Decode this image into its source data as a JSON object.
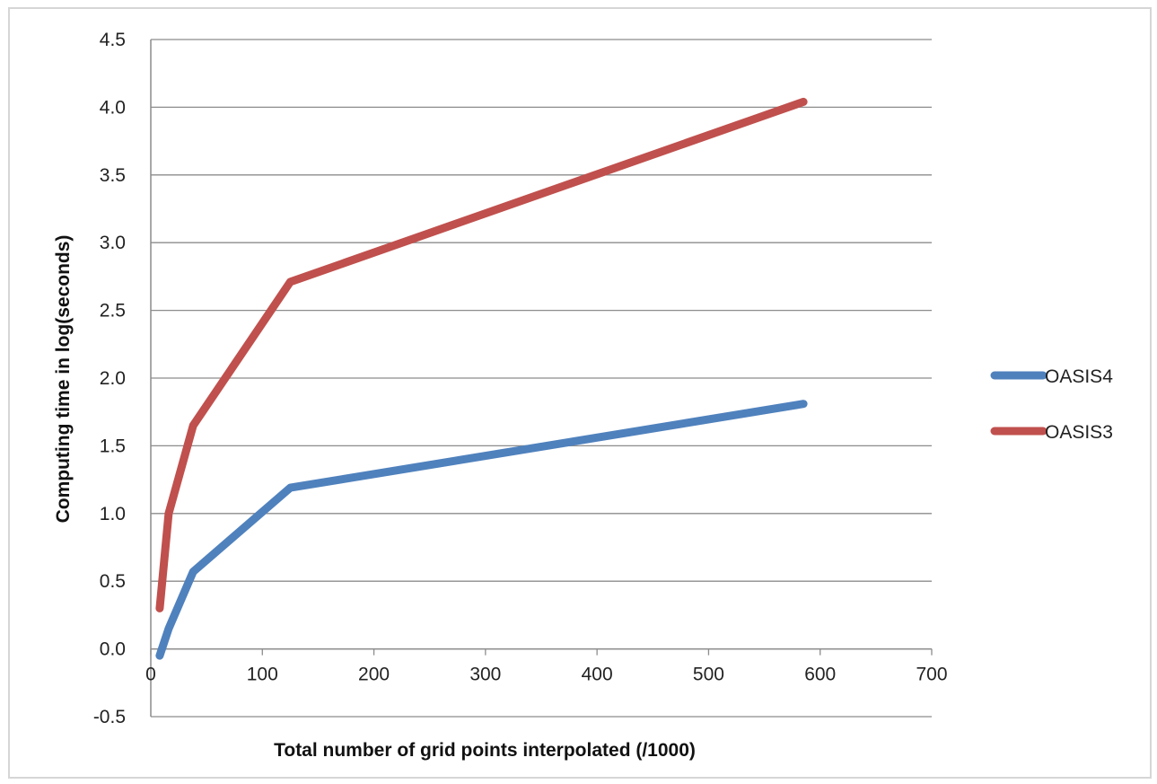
{
  "chart_data": {
    "type": "line",
    "xlabel": "Total number of grid points interpolated (/1000)",
    "ylabel": "Computing time in log(seconds)",
    "xlim": [
      0,
      700
    ],
    "ylim": [
      -0.5,
      4.5
    ],
    "x_ticks": [
      0,
      100,
      200,
      300,
      400,
      500,
      600,
      700
    ],
    "x_tick_labels": [
      "0",
      "100",
      "200",
      "300",
      "400",
      "500",
      "600",
      "700"
    ],
    "y_ticks": [
      -0.5,
      0.0,
      0.5,
      1.0,
      1.5,
      2.0,
      2.5,
      3.0,
      3.5,
      4.0,
      4.5
    ],
    "y_tick_labels": [
      "-0.5",
      "0.0",
      "0.5",
      "1.0",
      "1.5",
      "2.0",
      "2.5",
      "3.0",
      "3.5",
      "4.0",
      "4.5"
    ],
    "grid": "horizontal",
    "legend_position": "right",
    "series": [
      {
        "name": "OASIS4",
        "color": "#4f81bd",
        "x": [
          8,
          16,
          38,
          125,
          585
        ],
        "y": [
          -0.05,
          0.15,
          0.57,
          1.19,
          1.81
        ]
      },
      {
        "name": "OASIS3",
        "color": "#c0504d",
        "x": [
          8,
          16,
          38,
          125,
          585
        ],
        "y": [
          0.3,
          1.0,
          1.65,
          2.71,
          4.04
        ]
      }
    ]
  }
}
